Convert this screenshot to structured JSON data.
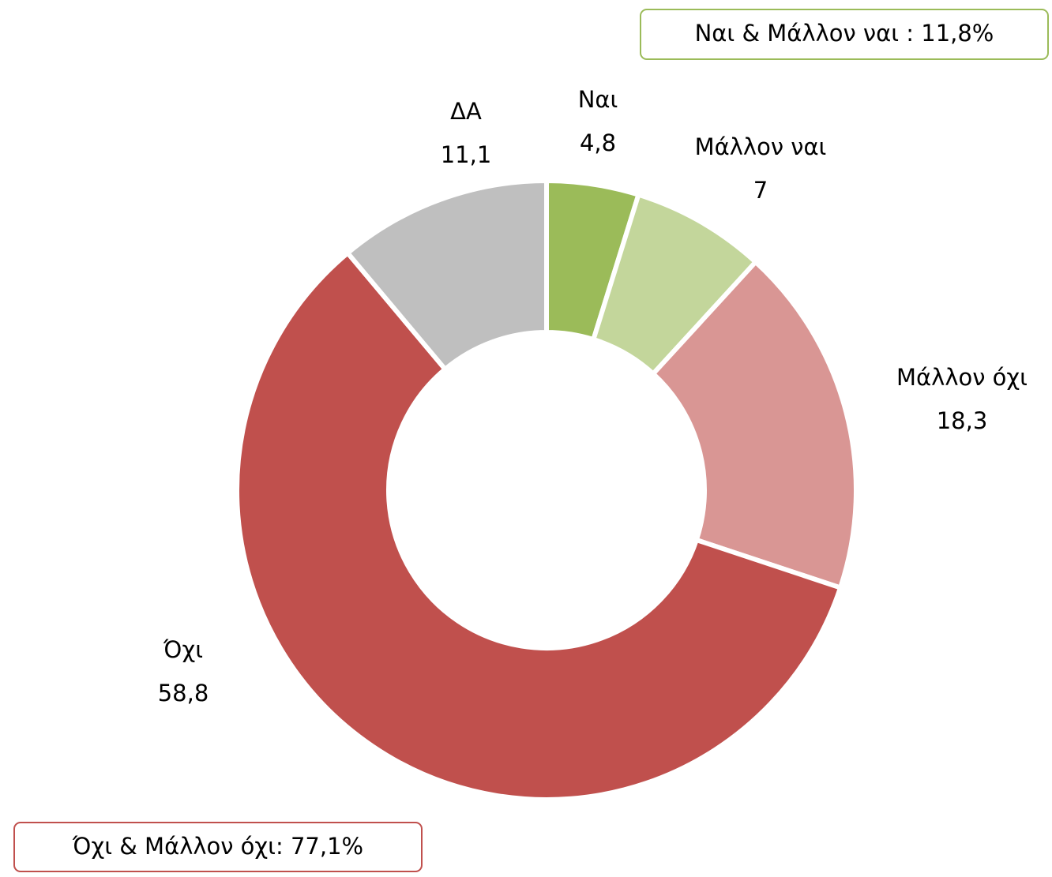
{
  "chart_data": {
    "type": "pie",
    "donut": true,
    "categories": [
      "Ναι",
      "Μάλλον ναι",
      "Μάλλον όχι",
      "Όχι",
      "ΔΑ"
    ],
    "values": [
      4.8,
      7,
      18.3,
      58.8,
      11.1
    ],
    "value_labels": [
      "4,8",
      "7",
      "18,3",
      "58,8",
      "11,1"
    ],
    "colors": [
      "#9bbb59",
      "#c3d69b",
      "#d99694",
      "#c0504d",
      "#bfbfbf"
    ],
    "annotations": [
      "Ναι & Μάλλον ναι : 11,8%",
      "Όχι & Μάλλον όχι: 77,1%"
    ]
  }
}
